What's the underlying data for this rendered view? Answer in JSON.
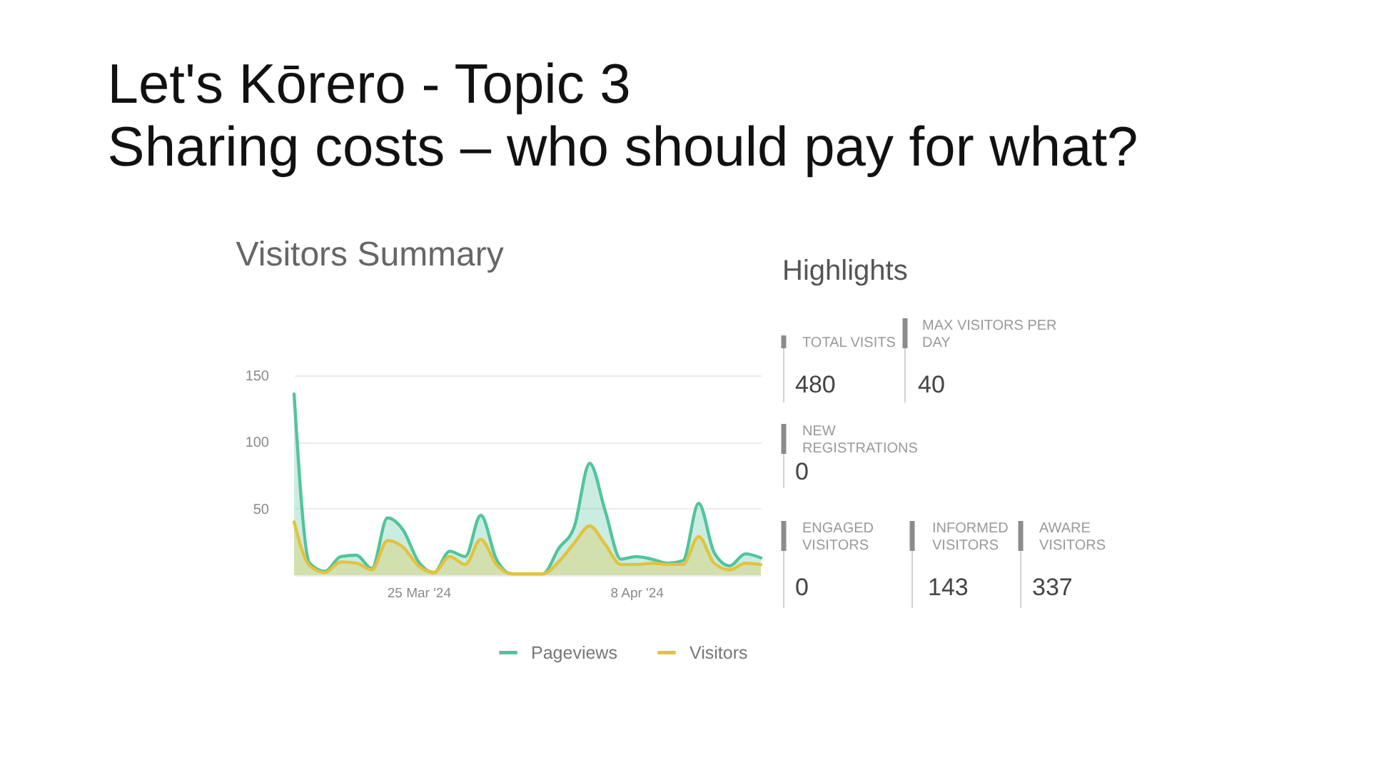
{
  "chart_data": [
    {
      "type": "area",
      "title": "Visitors Summary",
      "annotations": [
        "Let's Kōrero - Topic 3",
        "Sharing costs – who should pay for what?"
      ],
      "x": [
        "2024-03-17",
        "2024-03-18",
        "2024-03-19",
        "2024-03-20",
        "2024-03-21",
        "2024-03-22",
        "2024-03-23",
        "2024-03-24",
        "2024-03-25",
        "2024-03-26",
        "2024-03-27",
        "2024-03-28",
        "2024-03-29",
        "2024-03-30",
        "2024-03-31",
        "2024-04-01",
        "2024-04-02",
        "2024-04-03",
        "2024-04-04",
        "2024-04-05",
        "2024-04-06",
        "2024-04-07",
        "2024-04-08",
        "2024-04-09",
        "2024-04-10",
        "2024-04-11",
        "2024-04-12",
        "2024-04-13",
        "2024-04-14",
        "2024-04-15",
        "2024-04-16"
      ],
      "series": [
        {
          "name": "Pageviews",
          "color": "#52c49c",
          "values": [
            136,
            9,
            3,
            14,
            15,
            5,
            43,
            34,
            10,
            2,
            18,
            14,
            45,
            12,
            1,
            1,
            1,
            20,
            36,
            84,
            48,
            12,
            14,
            12,
            9,
            11,
            54,
            17,
            7,
            16,
            13
          ]
        },
        {
          "name": "Visitors",
          "color": "#e4c23e",
          "values": [
            40,
            7,
            2,
            10,
            9,
            4,
            26,
            21,
            7,
            2,
            14,
            8,
            27,
            8,
            1,
            1,
            1,
            10,
            24,
            37,
            23,
            8,
            8,
            9,
            8,
            8,
            29,
            9,
            4,
            9,
            8
          ]
        }
      ],
      "xlim": [
        "2024-03-17",
        "2024-04-16"
      ],
      "xticks": [
        {
          "value": "2024-03-25",
          "label": "25 Mar '24"
        },
        {
          "value": "2024-04-08",
          "label": "8 Apr '24"
        }
      ],
      "ylim": [
        0,
        150
      ],
      "yticks": [
        {
          "value": 0,
          "label": null
        },
        50,
        100,
        150
      ],
      "grid": "y",
      "legend": "bottom"
    },
    {
      "type": "other",
      "title": "Highlights",
      "categories": [
        "TOTAL VISITS",
        "MAX VISITORS PER DAY",
        "NEW REGISTRATIONS",
        "ENGAGED VISITORS",
        "INFORMED VISITORS",
        "AWARE VISITORS"
      ],
      "values": [
        480,
        40,
        0,
        0,
        143,
        337
      ],
      "data_labels": true
    }
  ]
}
